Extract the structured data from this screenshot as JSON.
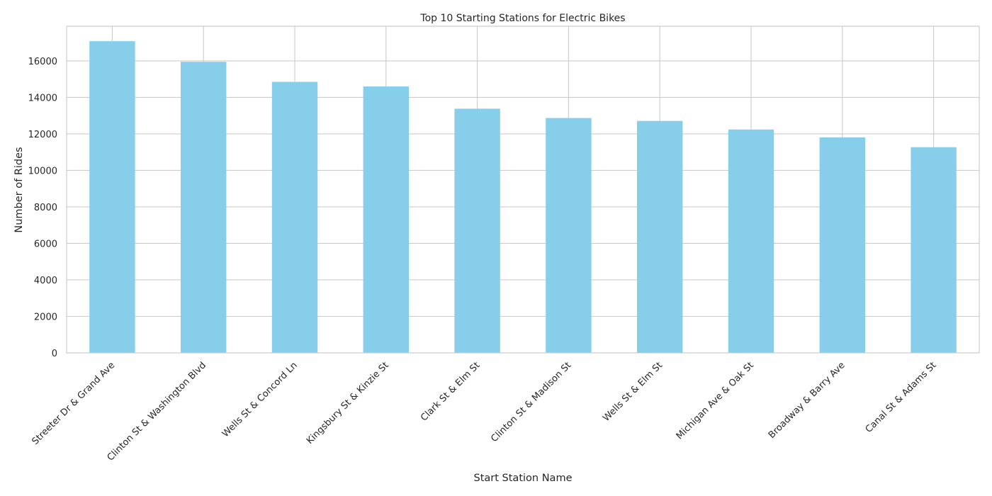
{
  "chart_data": {
    "type": "bar",
    "title": "Top 10 Starting Stations for Electric Bikes",
    "xlabel": "Start Station Name",
    "ylabel": "Number of Rides",
    "categories": [
      "Streeter Dr & Grand Ave",
      "Clinton St & Washington Blvd",
      "Wells St & Concord Ln",
      "Kingsbury St & Kinzie St",
      "Clark St & Elm St",
      "Clinton St & Madison St",
      "Wells St & Elm St",
      "Michigan Ave & Oak St",
      "Broadway & Barry Ave",
      "Canal St & Adams St"
    ],
    "values": [
      17080,
      15950,
      14850,
      14600,
      13380,
      12870,
      12710,
      12240,
      11810,
      11270
    ],
    "ylim": [
      0,
      17900
    ],
    "yticks": [
      0,
      2000,
      4000,
      6000,
      8000,
      10000,
      12000,
      14000,
      16000
    ],
    "grid": true,
    "legend": "none",
    "colors": {
      "bar": "#87ceeb",
      "grid": "#cccccc",
      "spine": "#cccccc",
      "text": "#262626"
    }
  }
}
